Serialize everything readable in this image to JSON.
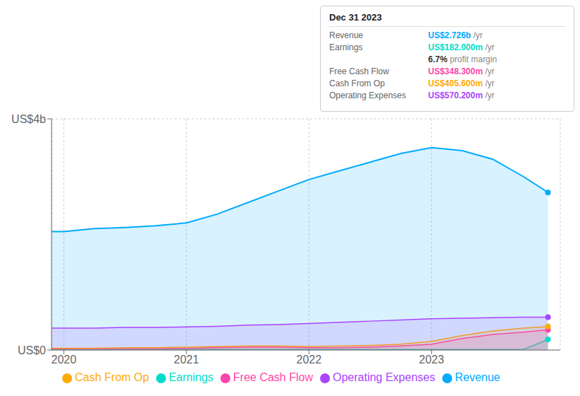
{
  "chart_data": {
    "type": "area",
    "x": [
      2019.9,
      2020.0,
      2020.25,
      2020.5,
      2020.75,
      2021.0,
      2021.25,
      2021.5,
      2021.75,
      2022.0,
      2022.25,
      2022.5,
      2022.75,
      2023.0,
      2023.25,
      2023.5,
      2023.75,
      2023.95
    ],
    "xlim": [
      2019.9,
      2024.05
    ],
    "xticks": [
      2020,
      2021,
      2022,
      2023
    ],
    "ylim": [
      0,
      4.0
    ],
    "yticks": [
      {
        "value": 0,
        "label": "US$0"
      },
      {
        "value": 4,
        "label": "US$4b"
      }
    ],
    "grid": true,
    "series": [
      {
        "name": "Revenue",
        "color": "#00aaff",
        "values": [
          2.05,
          2.05,
          2.1,
          2.12,
          2.15,
          2.2,
          2.35,
          2.55,
          2.75,
          2.95,
          3.1,
          3.25,
          3.4,
          3.5,
          3.45,
          3.3,
          3.0,
          2.726
        ]
      },
      {
        "name": "Earnings",
        "color": "#00ddcc",
        "values": [
          0.01,
          0.01,
          0.01,
          0.01,
          0.01,
          0.01,
          0.01,
          0.01,
          0.01,
          0.01,
          0.01,
          0.01,
          0.01,
          0.01,
          0.01,
          0.01,
          0.01,
          0.182
        ]
      },
      {
        "name": "Free Cash Flow",
        "color": "#ff44aa",
        "values": [
          0.02,
          0.02,
          0.02,
          0.025,
          0.025,
          0.03,
          0.04,
          0.05,
          0.05,
          0.04,
          0.04,
          0.05,
          0.07,
          0.1,
          0.2,
          0.27,
          0.31,
          0.348
        ]
      },
      {
        "name": "Cash From Op",
        "color": "#ffaa00",
        "values": [
          0.03,
          0.03,
          0.03,
          0.04,
          0.04,
          0.05,
          0.06,
          0.07,
          0.07,
          0.06,
          0.07,
          0.08,
          0.1,
          0.15,
          0.25,
          0.33,
          0.38,
          0.406
        ]
      },
      {
        "name": "Operating Expenses",
        "color": "#aa44ff",
        "values": [
          0.38,
          0.38,
          0.38,
          0.39,
          0.39,
          0.4,
          0.41,
          0.43,
          0.44,
          0.46,
          0.48,
          0.5,
          0.52,
          0.54,
          0.55,
          0.56,
          0.57,
          0.57
        ]
      }
    ],
    "annotations": {
      "heading": "Dec 31 2023",
      "rows": [
        {
          "label": "Revenue",
          "value": "US$2.726b",
          "suffix": " /yr",
          "color": "#00aaff"
        },
        {
          "label": "Earnings",
          "value": "US$182.000m",
          "suffix": " /yr",
          "color": "#00ddcc"
        },
        {
          "value": "6.7%",
          "suffix": " profit margin",
          "color": "#333333"
        },
        {
          "label": "Free Cash Flow",
          "value": "US$348.300m",
          "suffix": " /yr",
          "color": "#ff44aa"
        },
        {
          "label": "Cash From Op",
          "value": "US$405.600m",
          "suffix": " /yr",
          "color": "#ffaa00"
        },
        {
          "label": "Operating Expenses",
          "value": "US$570.200m",
          "suffix": " /yr",
          "color": "#aa44ff"
        }
      ]
    }
  }
}
